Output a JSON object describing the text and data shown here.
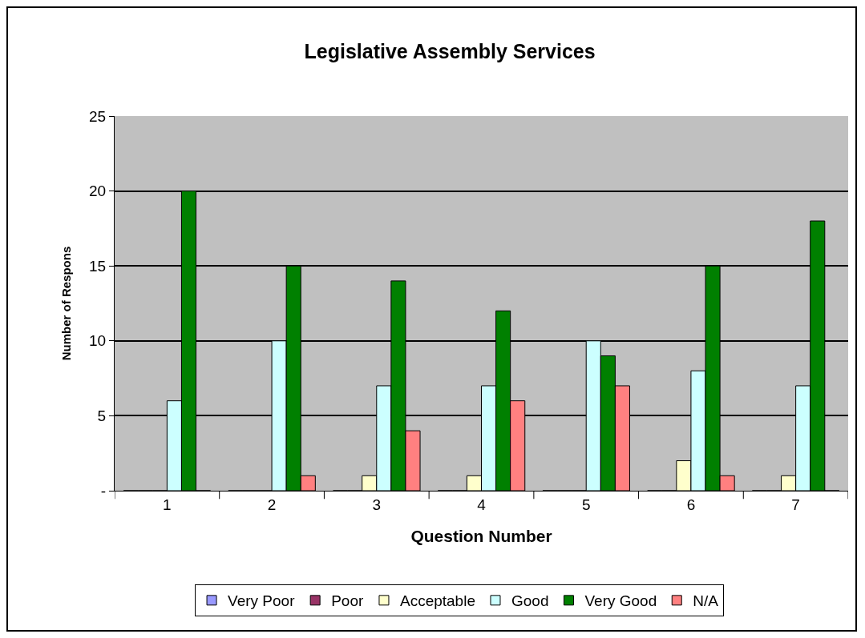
{
  "chart_data": {
    "type": "bar",
    "title": "Legislative Assembly Services",
    "xlabel": "Question Number",
    "ylabel": "Number of Respons",
    "categories": [
      "1",
      "2",
      "3",
      "4",
      "5",
      "6",
      "7"
    ],
    "series": [
      {
        "name": "Very Poor",
        "color": "#9999ff",
        "values": [
          0,
          0,
          0,
          0,
          0,
          0,
          0
        ]
      },
      {
        "name": "Poor",
        "color": "#993366",
        "values": [
          0,
          0,
          0,
          0,
          0,
          0,
          0
        ]
      },
      {
        "name": "Acceptable",
        "color": "#ffffcc",
        "values": [
          0,
          0,
          1,
          1,
          0,
          2,
          1
        ]
      },
      {
        "name": "Good",
        "color": "#ccffff",
        "values": [
          6,
          10,
          7,
          7,
          10,
          8,
          7
        ]
      },
      {
        "name": "Very Good",
        "color": "#008000",
        "values": [
          20,
          15,
          14,
          12,
          9,
          15,
          18
        ]
      },
      {
        "name": "N/A",
        "color": "#ff8080",
        "values": [
          0,
          1,
          4,
          6,
          7,
          1,
          0
        ]
      }
    ],
    "ylim": [
      0,
      25
    ],
    "yticks": [
      {
        "value": 0,
        "label": "-"
      },
      5,
      10,
      15,
      20,
      25
    ],
    "grid": "y",
    "legend": "bottom"
  }
}
